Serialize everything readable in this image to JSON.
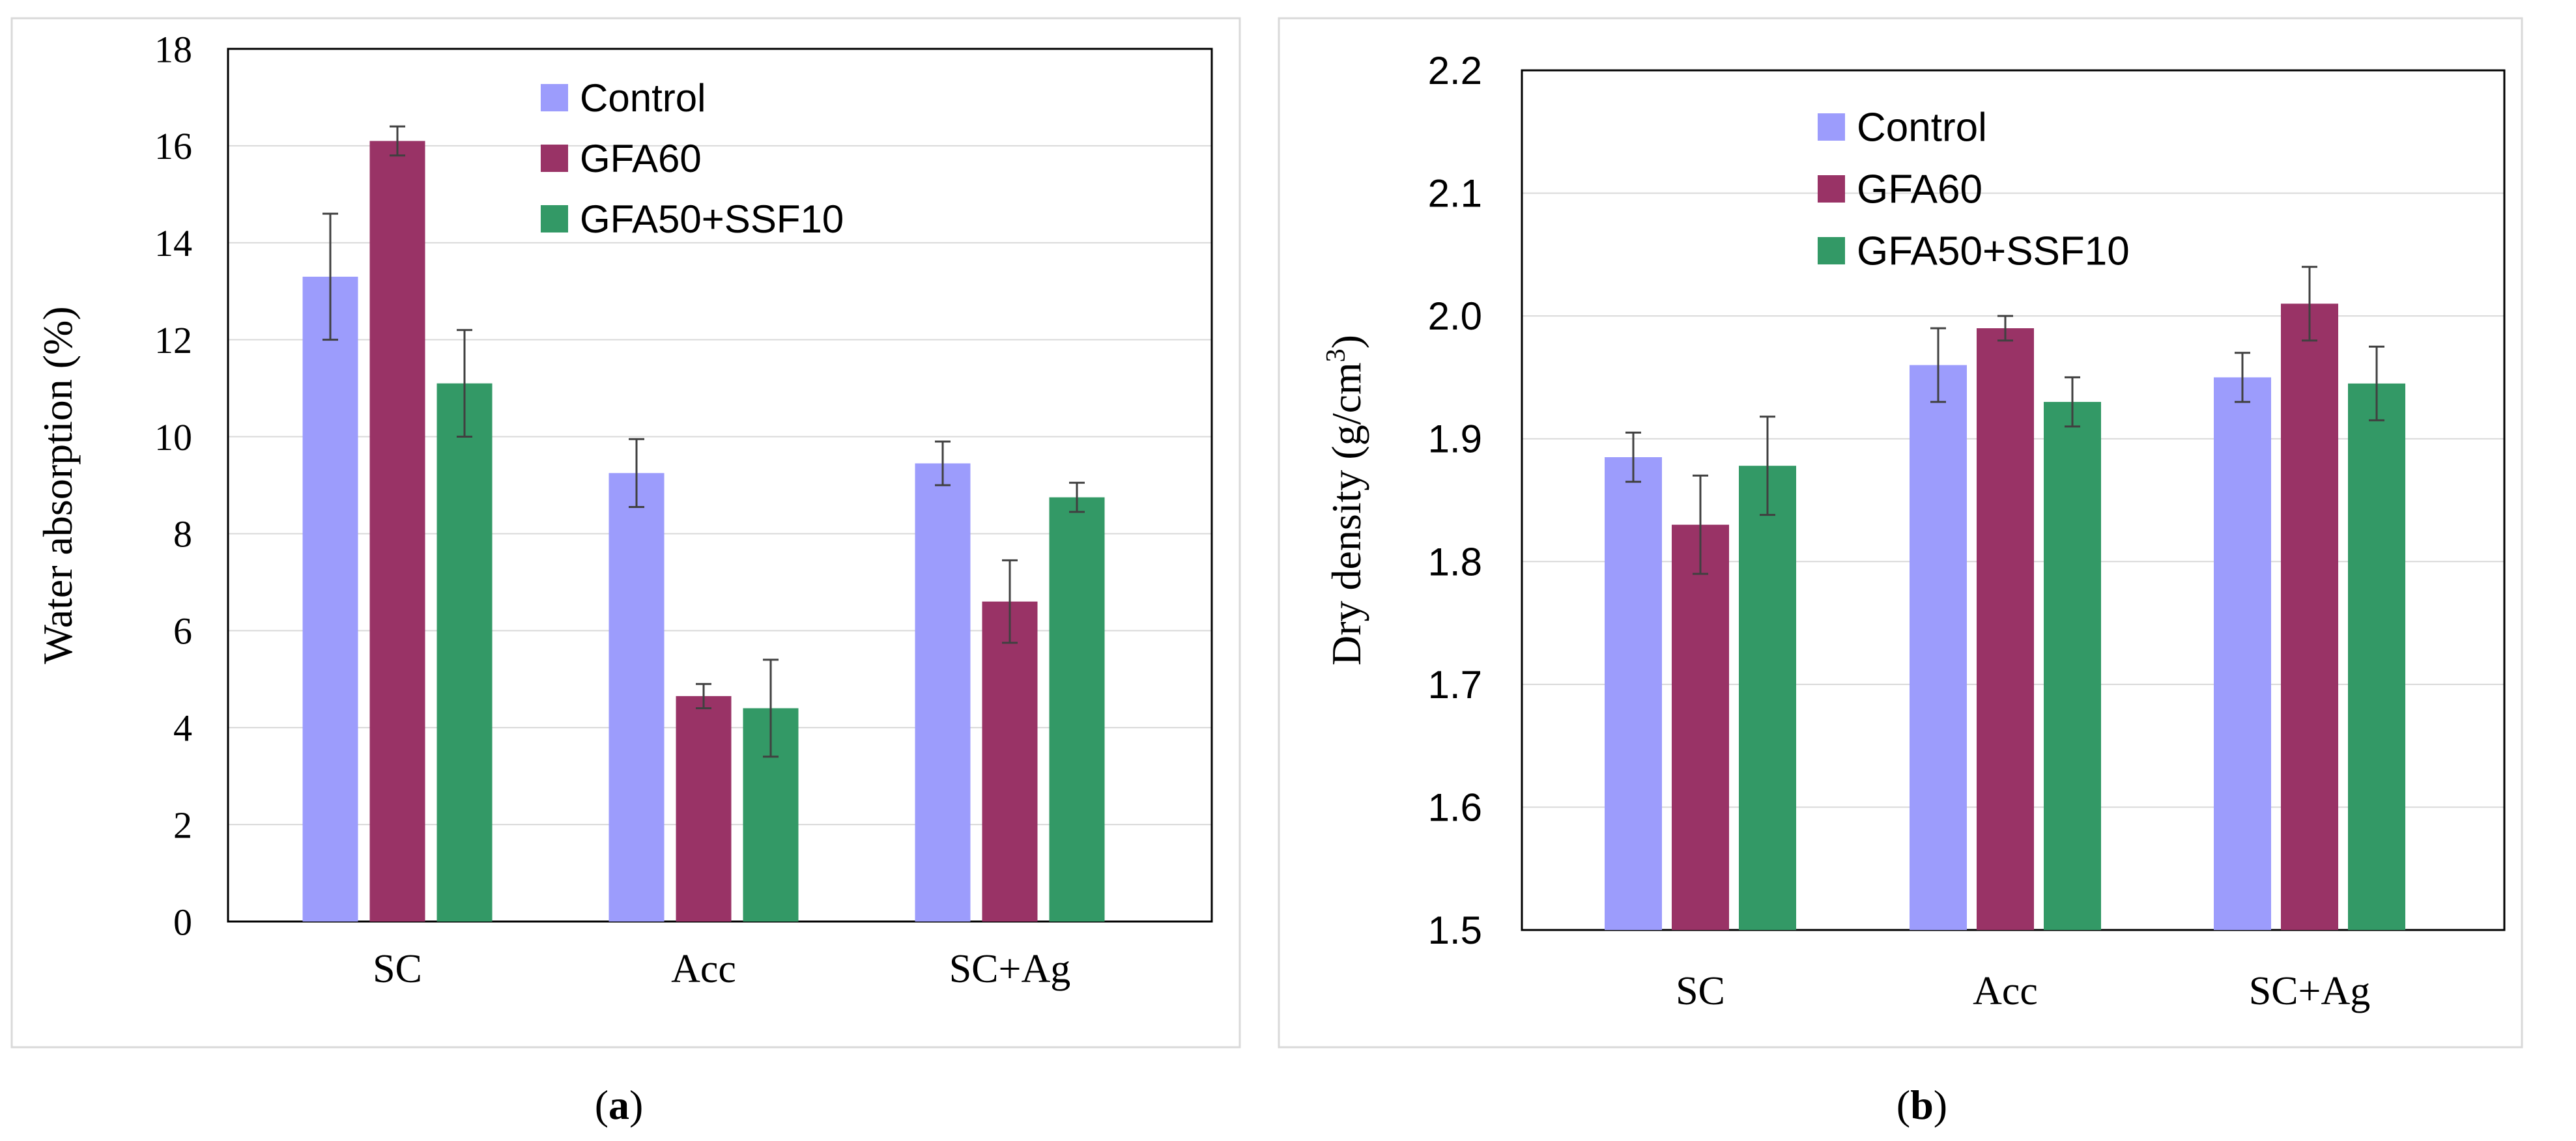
{
  "colors": {
    "control": "#9c9cfc",
    "gfa60": "#993366",
    "gfa50_ssf10": "#339966",
    "grid": "#d9d9d9",
    "frame": "#d9d9d9",
    "axis": "#000000"
  },
  "chart_data": [
    {
      "type": "bar",
      "panel_label_open": "(",
      "panel_label_letter": "a",
      "panel_label_close": ")",
      "title": "",
      "xlabel": "",
      "ylabel": "Water absorption  (%)",
      "categories": [
        "SC",
        "Acc",
        "SC+Ag"
      ],
      "ylim": [
        0,
        18
      ],
      "yticks": [
        0,
        2,
        4,
        6,
        8,
        10,
        12,
        14,
        16,
        18
      ],
      "ytick_labels": [
        "0",
        "2",
        "4",
        "6",
        "8",
        "10",
        "12",
        "14",
        "16",
        "18"
      ],
      "grid": true,
      "legend_position": "top-right",
      "series": [
        {
          "name": "Control",
          "values": [
            13.3,
            9.25,
            9.45
          ],
          "errors": [
            1.3,
            0.7,
            0.45
          ]
        },
        {
          "name": "GFA60",
          "values": [
            16.1,
            4.65,
            6.6
          ],
          "errors": [
            0.3,
            0.25,
            0.85
          ]
        },
        {
          "name": "GFA50+SSF10",
          "values": [
            11.1,
            4.4,
            8.75
          ],
          "errors": [
            1.1,
            1.0,
            0.3
          ]
        }
      ]
    },
    {
      "type": "bar",
      "panel_label_open": "(",
      "panel_label_letter": "b",
      "panel_label_close": ")",
      "title": "",
      "xlabel": "",
      "ylabel_main": "Dry density  (g/cm",
      "ylabel_sup": "3",
      "ylabel_end": ")",
      "categories": [
        "SC",
        "Acc",
        "SC+Ag"
      ],
      "ylim": [
        1.5,
        2.2
      ],
      "yticks": [
        1.5,
        1.6,
        1.7,
        1.8,
        1.9,
        2.0,
        2.1,
        2.2
      ],
      "ytick_labels": [
        "1.5",
        "1.6",
        "1.7",
        "1.8",
        "1.9",
        "2.0",
        "2.1",
        "2.2"
      ],
      "grid": true,
      "legend_position": "top-center",
      "series": [
        {
          "name": "Control",
          "values": [
            1.885,
            1.96,
            1.95
          ],
          "errors": [
            0.02,
            0.03,
            0.02
          ]
        },
        {
          "name": "GFA60",
          "values": [
            1.83,
            1.99,
            2.01
          ],
          "errors": [
            0.04,
            0.01,
            0.03
          ]
        },
        {
          "name": "GFA50+SSF10",
          "values": [
            1.878,
            1.93,
            1.945
          ],
          "errors": [
            0.04,
            0.02,
            0.03
          ]
        }
      ]
    }
  ]
}
